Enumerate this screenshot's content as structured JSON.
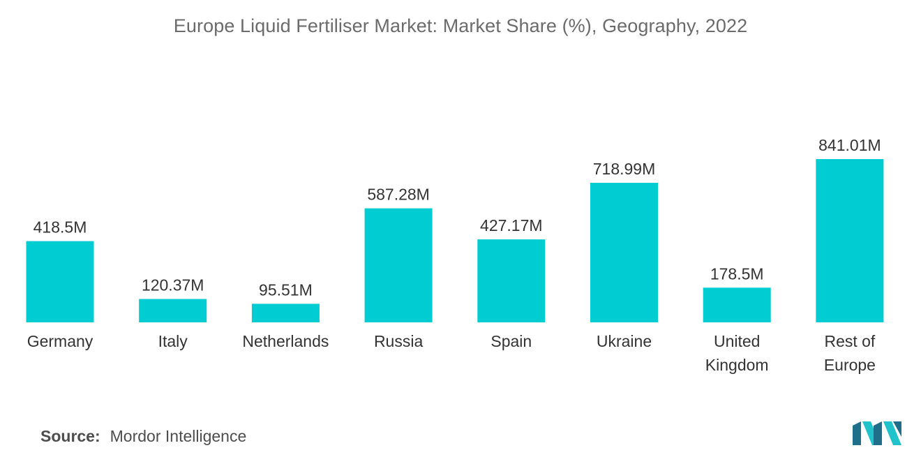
{
  "chart_data": {
    "type": "bar",
    "title": "Europe Liquid Fertiliser Market: Market Share (%), Geography,  2022",
    "categories": [
      [
        "Germany"
      ],
      [
        "Italy"
      ],
      [
        "Netherlands"
      ],
      [
        "Russia"
      ],
      [
        "Spain"
      ],
      [
        "Ukraine"
      ],
      [
        "United",
        "Kingdom"
      ],
      [
        "Rest of",
        "Europe"
      ]
    ],
    "values": [
      418.5,
      120.37,
      95.51,
      587.28,
      427.17,
      718.99,
      178.5,
      841.01
    ],
    "data_labels": [
      "418.5M",
      "120.37M",
      "95.51M",
      "587.28M",
      "427.17M",
      "718.99M",
      "178.5M",
      "841.01M"
    ],
    "unit": "M",
    "xlabel": "",
    "ylabel": "",
    "y_axis_visible": false,
    "grid": false,
    "bar_color": "#00CCD1"
  },
  "source": {
    "key": "Source:",
    "value": "Mordor Intelligence"
  },
  "logo": {
    "icon": "mordor-intelligence-logo-icon",
    "colors": [
      "#1f6f8b",
      "#21c3cb"
    ]
  }
}
